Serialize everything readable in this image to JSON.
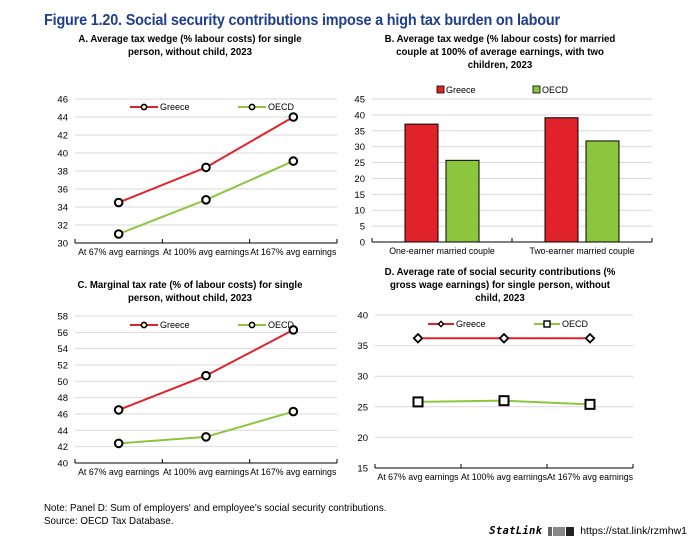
{
  "figure": {
    "title": "Figure 1.20. Social security contributions impose a high tax burden on labour",
    "note": "Note: Panel D: Sum of employers' and employee's social security contributions.",
    "source": "Source: OECD Tax Database.",
    "statlink_brand": "StatLink",
    "statlink_url": "https://stat.link/rzmhw1"
  },
  "colors": {
    "greece": "#e0232b",
    "oecd": "#8cc63f",
    "grid": "#d9d9d9",
    "title": "#1f3e8c"
  },
  "panels": {
    "a": {
      "title_line1": "A. Average tax wedge (% labour costs) for single",
      "title_line2": "person, without child, 2023"
    },
    "b": {
      "title_line1": "B. Average tax wedge (% labour costs) for married",
      "title_line2": "couple at 100% of average earnings, with two",
      "title_line3": "children, 2023"
    },
    "c": {
      "title_line1": "C. Marginal tax rate (% of labour costs) for single",
      "title_line2": "person, without child, 2023"
    },
    "d": {
      "title_line1": "D. Average rate of social security contributions (%",
      "title_line2": "gross wage earnings) for single person, without",
      "title_line3": "child, 2023"
    }
  },
  "chart_data": [
    {
      "id": "a",
      "type": "line",
      "title": "A. Average tax wedge (% labour costs) for single person, without child, 2023",
      "categories": [
        "At 67% avg earnings",
        "At 100% avg earnings",
        "At 167% avg earnings"
      ],
      "series": [
        {
          "name": "Greece",
          "values": [
            34.5,
            38.4,
            44.0
          ],
          "marker": "circle"
        },
        {
          "name": "OECD",
          "values": [
            31.0,
            34.8,
            39.1
          ],
          "marker": "circle"
        }
      ],
      "ylim": [
        30,
        46
      ],
      "yticks": [
        30,
        32,
        34,
        36,
        38,
        40,
        42,
        44,
        46
      ],
      "xlabel": "",
      "ylabel": "",
      "grid": true,
      "legend": "top"
    },
    {
      "id": "b",
      "type": "bar",
      "title": "B. Average tax wedge (% labour costs) for married couple at 100% of average earnings, with two children, 2023",
      "categories": [
        "One-earner married couple",
        "Two-earner married couple"
      ],
      "series": [
        {
          "name": "Greece",
          "values": [
            37.1,
            39.1
          ]
        },
        {
          "name": "OECD",
          "values": [
            25.7,
            31.8
          ]
        }
      ],
      "ylim": [
        0,
        45
      ],
      "yticks": [
        0,
        5,
        10,
        15,
        20,
        25,
        30,
        35,
        40,
        45
      ],
      "xlabel": "",
      "ylabel": "",
      "grid": true,
      "legend": "top"
    },
    {
      "id": "c",
      "type": "line",
      "title": "C. Marginal tax rate (% of labour costs) for single person, without child, 2023",
      "categories": [
        "At 67% avg earnings",
        "At 100% avg earnings",
        "At 167% avg earnings"
      ],
      "series": [
        {
          "name": "Greece",
          "values": [
            46.5,
            50.7,
            56.3
          ],
          "marker": "circle"
        },
        {
          "name": "OECD",
          "values": [
            42.4,
            43.2,
            46.3
          ],
          "marker": "circle"
        }
      ],
      "ylim": [
        40,
        58
      ],
      "yticks": [
        40,
        42,
        44,
        46,
        48,
        50,
        52,
        54,
        56,
        58
      ],
      "xlabel": "",
      "ylabel": "",
      "grid": true,
      "legend": "top"
    },
    {
      "id": "d",
      "type": "line",
      "title": "D. Average rate of social security contributions (% gross wage earnings) for single person, without child, 2023",
      "categories": [
        "At 67% avg earnings",
        "At 100% avg earnings",
        "At 167% avg earnings"
      ],
      "series": [
        {
          "name": "Greece",
          "values": [
            36.2,
            36.2,
            36.2
          ],
          "marker": "diamond"
        },
        {
          "name": "OECD",
          "values": [
            25.8,
            26.0,
            25.4
          ],
          "marker": "square"
        }
      ],
      "ylim": [
        15,
        40
      ],
      "yticks": [
        15,
        20,
        25,
        30,
        35,
        40
      ],
      "xlabel": "",
      "ylabel": "",
      "grid": true,
      "legend": "top"
    }
  ]
}
